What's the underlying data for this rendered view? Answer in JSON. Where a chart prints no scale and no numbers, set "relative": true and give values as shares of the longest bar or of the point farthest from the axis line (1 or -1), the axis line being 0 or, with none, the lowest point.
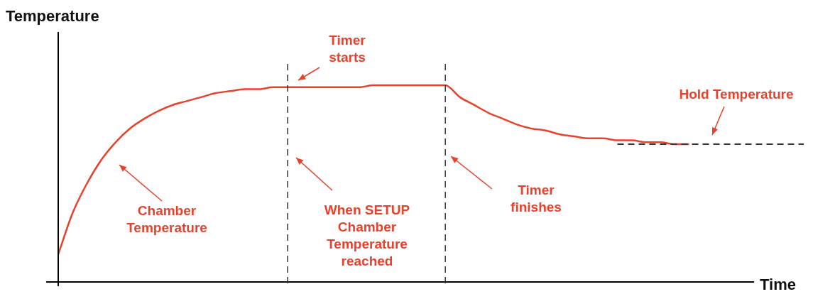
{
  "chart_data": {
    "type": "line",
    "relative": true,
    "xlabel": "Time",
    "ylabel": "Temperature",
    "marker": "none",
    "categories": [
      null,
      null,
      null,
      null,
      null,
      null,
      null,
      null,
      null,
      null,
      null,
      null,
      null,
      null,
      null,
      null,
      null,
      null,
      null,
      null,
      null,
      null,
      null,
      null,
      null,
      null,
      null,
      null,
      null,
      null,
      null,
      null,
      null,
      null,
      null,
      null,
      null,
      null,
      null,
      null,
      null,
      null,
      null,
      null,
      null,
      null,
      null,
      null,
      null,
      null,
      null,
      null,
      null
    ],
    "series": [
      {
        "color": "#e8412c",
        "line_style": "solid",
        "values": [
          0.14,
          0.35,
          0.5,
          0.62,
          0.71,
          0.78,
          0.83,
          0.87,
          0.9,
          0.92,
          0.94,
          0.96,
          0.97,
          0.98,
          0.98,
          0.99,
          0.99,
          0.99,
          0.99,
          0.99,
          0.99,
          0.99,
          1.0,
          1.0,
          1.0,
          1.0,
          1.0,
          1.0,
          0.94,
          0.9,
          0.86,
          0.83,
          0.8,
          0.78,
          0.77,
          0.75,
          0.74,
          0.73,
          0.73,
          0.72,
          0.72,
          0.71,
          0.71,
          0.7,
          0.7,
          null,
          null,
          null,
          null,
          null,
          null,
          null,
          null
        ]
      },
      {
        "color": "#333333",
        "line_style": "dashed",
        "values": [
          null,
          null,
          null,
          null,
          null,
          null,
          null,
          null,
          null,
          null,
          null,
          null,
          null,
          null,
          null,
          null,
          null,
          null,
          null,
          null,
          null,
          null,
          null,
          null,
          null,
          null,
          null,
          null,
          null,
          null,
          null,
          null,
          null,
          null,
          null,
          null,
          null,
          null,
          null,
          0.7,
          0.7,
          0.7,
          0.7,
          0.7,
          0.7,
          0.7,
          0.7,
          0.7,
          0.7,
          0.7,
          0.7,
          0.7,
          0.7
        ]
      }
    ],
    "annotations": [
      "Timer\nstarts",
      "Hold Temperature",
      "Chamber\nTemperature",
      "When SETUP\nChamber\nTemperature\nreached",
      "Timer\nfinishes"
    ]
  }
}
